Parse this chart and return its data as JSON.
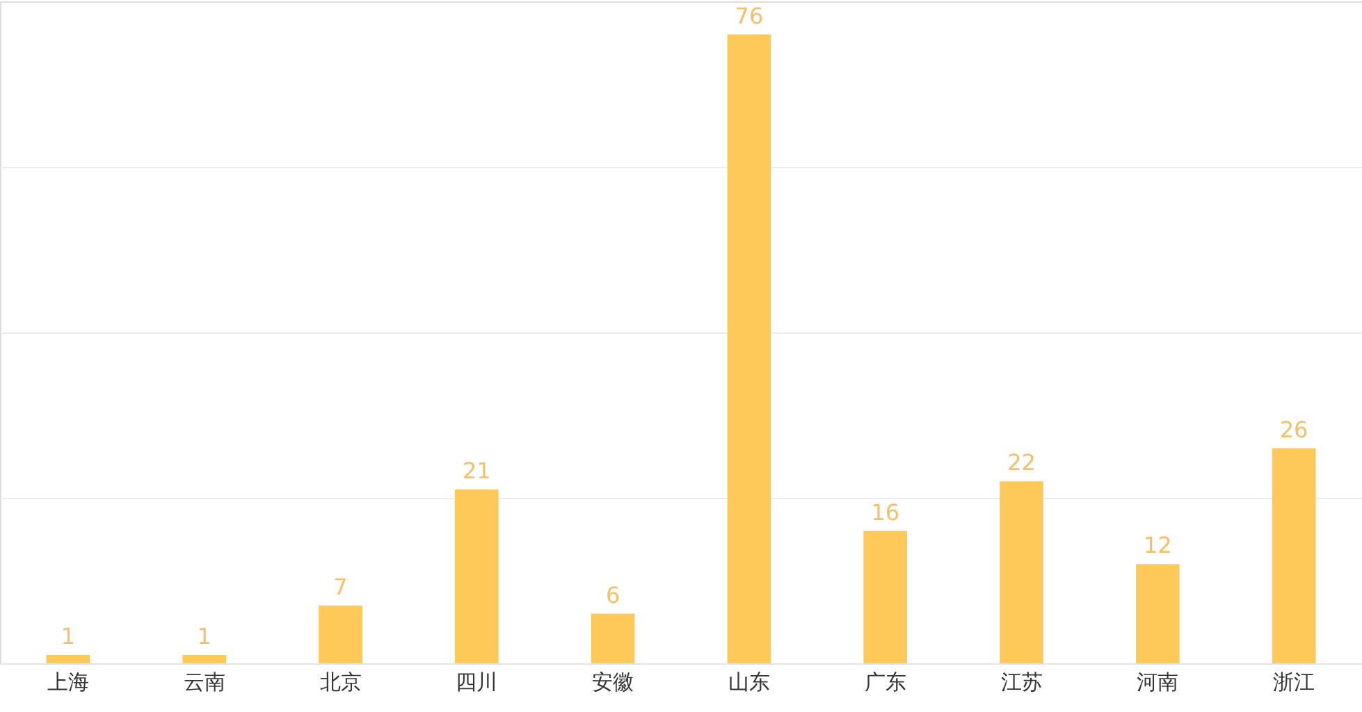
{
  "chart_data": {
    "type": "bar",
    "categories": [
      "上海",
      "云南",
      "北京",
      "四川",
      "安徽",
      "山东",
      "广东",
      "江苏",
      "河南",
      "浙江"
    ],
    "values": [
      1,
      1,
      7,
      21,
      6,
      76,
      16,
      22,
      12,
      26
    ],
    "color": "#ffc95a",
    "ylim": [
      0,
      80
    ],
    "yticks": [
      {
        "value": 0,
        "label": null
      },
      {
        "value": 20,
        "label": null
      },
      {
        "value": 40,
        "label": null
      },
      {
        "value": 60,
        "label": null
      }
    ],
    "grid": "y",
    "tick_labels": "x",
    "data_labels": true
  }
}
